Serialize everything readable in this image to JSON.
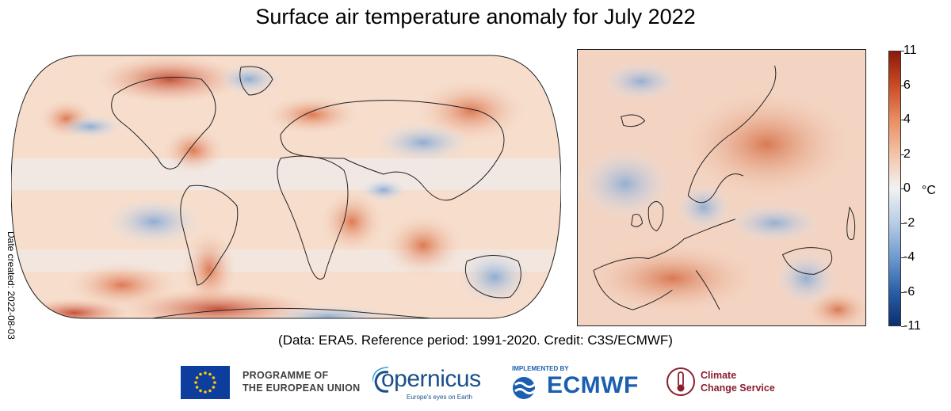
{
  "title": "Surface air temperature anomaly for July 2022",
  "date_created": "Date created: 2022-08-03",
  "footnote": "(Data: ERA5.  Reference period: 1991-2020.  Credit: C3S/ECMWF)",
  "colorbar": {
    "unit": "°C",
    "ticks": [
      "11",
      "6",
      "4",
      "2",
      "0",
      "-2",
      "-4",
      "-6",
      "-11"
    ],
    "colors": [
      "#0b2f6e",
      "#2b5fa8",
      "#6f9bd0",
      "#b7cde6",
      "#f2f2f2",
      "#f3c4a8",
      "#e98e63",
      "#cc4b24",
      "#8a1a0a"
    ]
  },
  "maps": [
    {
      "name": "world",
      "projection": "Robinson"
    },
    {
      "name": "europe"
    }
  ],
  "logos": {
    "eu": {
      "line1": "PROGRAMME OF",
      "line2": "THE EUROPEAN UNION",
      "icon": "eu-flag-icon"
    },
    "copernicus": {
      "wordmark": "opernicus",
      "tagline": "Europe's eyes on Earth",
      "icon": "copernicus-c-icon"
    },
    "ecmwf": {
      "prefix": "IMPLEMENTED BY",
      "wordmark": "ECMWF",
      "icon": "ecmwf-waves-icon"
    },
    "c3s": {
      "line1": "Climate",
      "line2": "Change Service",
      "icon": "thermometer-icon"
    }
  }
}
